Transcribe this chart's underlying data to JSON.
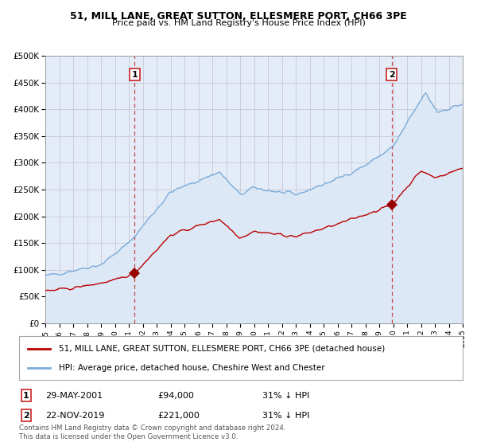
{
  "title1": "51, MILL LANE, GREAT SUTTON, ELLESMERE PORT, CH66 3PE",
  "title2": "Price paid vs. HM Land Registry's House Price Index (HPI)",
  "legend_line1": "51, MILL LANE, GREAT SUTTON, ELLESMERE PORT, CH66 3PE (detached house)",
  "legend_line2": "HPI: Average price, detached house, Cheshire West and Chester",
  "annotation1_label": "1",
  "annotation1_date": "29-MAY-2001",
  "annotation1_price": "£94,000",
  "annotation1_hpi": "31% ↓ HPI",
  "annotation2_label": "2",
  "annotation2_date": "22-NOV-2019",
  "annotation2_price": "£221,000",
  "annotation2_hpi": "31% ↓ HPI",
  "footer": "Contains HM Land Registry data © Crown copyright and database right 2024.\nThis data is licensed under the Open Government Licence v3.0.",
  "red_color": "#bb0000",
  "blue_color": "#7aabdb",
  "blue_fill": "#dce8f5",
  "grid_color": "#c8c8d8",
  "annotation_line_color": "#cc4444",
  "background_color": "#ffffff",
  "plot_bg_color": "#e4ecf7",
  "ylim": [
    0,
    500000
  ],
  "sale1_year": 2001.41,
  "sale1_price": 94000,
  "sale2_year": 2019.9,
  "sale2_price": 221000,
  "start_year": 1995,
  "end_year": 2025
}
